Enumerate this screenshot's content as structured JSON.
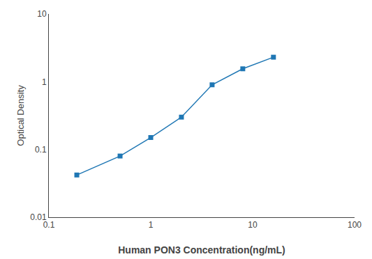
{
  "chart_data": {
    "type": "line",
    "x": [
      0.188,
      0.5,
      1.0,
      2.0,
      4.0,
      8.0,
      16.0
    ],
    "values": [
      0.042,
      0.08,
      0.15,
      0.3,
      0.9,
      1.55,
      2.3
    ],
    "xlabel": "Human PON3 Concentration(ng/mL)",
    "ylabel": "Optical Density",
    "xlim": [
      0.1,
      100
    ],
    "ylim": [
      0.01,
      10
    ],
    "xticks": [
      0.1,
      1,
      10,
      100
    ],
    "yticks": [
      0.01,
      0.1,
      1,
      10
    ],
    "log": true,
    "grid": false,
    "marker": "square",
    "line_style": "solid"
  }
}
